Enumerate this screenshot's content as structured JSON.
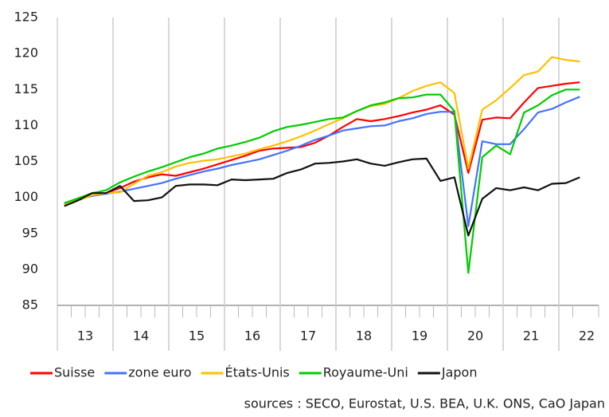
{
  "chart_data": {
    "type": "line",
    "categories": [
      null,
      "13",
      null,
      null,
      null,
      "14",
      null,
      null,
      null,
      "15",
      null,
      null,
      null,
      "16",
      null,
      null,
      null,
      "17",
      null,
      null,
      null,
      "18",
      null,
      null,
      null,
      "19",
      null,
      null,
      null,
      "20",
      null,
      null,
      null,
      "21",
      null,
      null,
      null,
      "22"
    ],
    "ylim": [
      85,
      125
    ],
    "yticks": [
      85,
      90,
      95,
      100,
      105,
      110,
      115,
      120,
      125
    ],
    "grid": true,
    "legend": "bottom",
    "source": "sources : SECO, Eurostat, U.S. BEA, U.K. ONS, CaO Japan",
    "series": [
      {
        "name": "Suisse",
        "color": "#ff0000",
        "values": [
          99.0,
          99.6,
          100.3,
          100.6,
          101.3,
          102.2,
          102.8,
          103.2,
          103.0,
          103.5,
          104.0,
          104.6,
          105.2,
          105.8,
          106.5,
          106.8,
          106.9,
          107.0,
          107.6,
          108.6,
          109.8,
          110.9,
          110.6,
          110.9,
          111.3,
          111.8,
          112.2,
          112.8,
          111.5,
          103.4,
          110.8,
          111.1,
          111.0,
          113.2,
          115.2,
          115.5,
          115.8,
          116.0
        ]
      },
      {
        "name": "zone euro",
        "color": "#4472ff",
        "values": [
          99.2,
          99.8,
          100.2,
          100.5,
          100.8,
          101.2,
          101.6,
          102.0,
          102.6,
          103.1,
          103.6,
          104.0,
          104.5,
          104.9,
          105.3,
          105.9,
          106.5,
          107.2,
          108.0,
          108.6,
          109.3,
          109.6,
          109.9,
          110.0,
          110.6,
          111.0,
          111.6,
          111.9,
          111.9,
          96.0,
          107.8,
          107.4,
          107.4,
          109.5,
          111.8,
          112.3,
          113.2,
          114.0
        ]
      },
      {
        "name": "États-Unis",
        "color": "#ffc000",
        "values": [
          99.0,
          99.6,
          100.3,
          100.6,
          100.7,
          101.9,
          103.0,
          103.5,
          104.3,
          104.8,
          105.1,
          105.3,
          105.7,
          106.1,
          106.7,
          107.2,
          107.8,
          108.5,
          109.3,
          110.2,
          111.0,
          112.0,
          112.7,
          113.0,
          113.8,
          114.8,
          115.5,
          116.0,
          114.5,
          104.0,
          112.2,
          113.5,
          115.2,
          117.0,
          117.5,
          119.5,
          119.1,
          118.9
        ]
      },
      {
        "name": "Royaume-Uni",
        "color": "#00cc00",
        "values": [
          99.2,
          99.9,
          100.6,
          101.0,
          102.1,
          102.9,
          103.6,
          104.2,
          104.9,
          105.6,
          106.1,
          106.8,
          107.2,
          107.7,
          108.3,
          109.2,
          109.8,
          110.1,
          110.5,
          110.9,
          111.1,
          112.0,
          112.8,
          113.2,
          113.8,
          113.9,
          114.3,
          114.3,
          112.0,
          89.5,
          105.6,
          107.2,
          106.0,
          111.8,
          112.8,
          114.2,
          115.0,
          115.0
        ]
      },
      {
        "name": "Japon",
        "color": "#111111",
        "values": [
          98.8,
          99.6,
          100.6,
          100.6,
          101.6,
          99.5,
          99.6,
          100.0,
          101.6,
          101.8,
          101.8,
          101.7,
          102.5,
          102.4,
          102.5,
          102.6,
          103.4,
          103.9,
          104.7,
          104.8,
          105.0,
          105.3,
          104.7,
          104.4,
          104.9,
          105.3,
          105.4,
          102.3,
          102.8,
          94.7,
          99.8,
          101.3,
          101.0,
          101.4,
          101.0,
          101.9,
          102.0,
          102.8
        ]
      }
    ]
  }
}
